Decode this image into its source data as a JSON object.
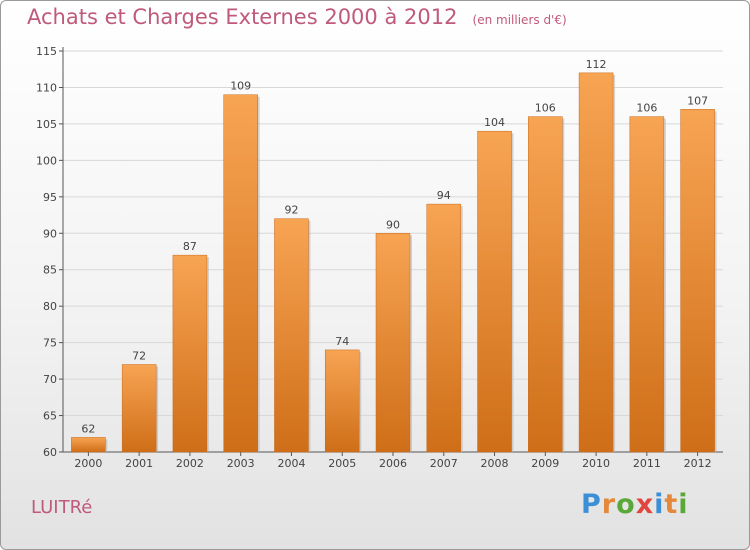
{
  "chart_data": {
    "type": "bar",
    "title": "Achats et Charges Externes 2000 à 2012",
    "subtitle": "(en milliers d'€)",
    "categories": [
      "2000",
      "2001",
      "2002",
      "2003",
      "2004",
      "2005",
      "2006",
      "2007",
      "2008",
      "2009",
      "2010",
      "2011",
      "2012"
    ],
    "values": [
      62,
      72,
      87,
      109,
      92,
      74,
      90,
      94,
      104,
      106,
      112,
      106,
      107
    ],
    "ylim": [
      60,
      115
    ],
    "yticks": [
      60,
      65,
      70,
      75,
      80,
      85,
      90,
      95,
      100,
      105,
      110,
      115
    ],
    "grid": true,
    "bar_color_top": "#f7a453",
    "bar_color_bottom": "#cf6e18"
  },
  "footer": {
    "city": "LUITRé",
    "logo_letters": [
      {
        "ch": "P",
        "color": "#3a8fd6"
      },
      {
        "ch": "r",
        "color": "#e4883a"
      },
      {
        "ch": "o",
        "color": "#5aa83a"
      },
      {
        "ch": "x",
        "color": "#e0463e"
      },
      {
        "ch": "i",
        "color": "#3a8fd6"
      },
      {
        "ch": "t",
        "color": "#e4883a"
      },
      {
        "ch": "i",
        "color": "#5aa83a"
      }
    ]
  }
}
